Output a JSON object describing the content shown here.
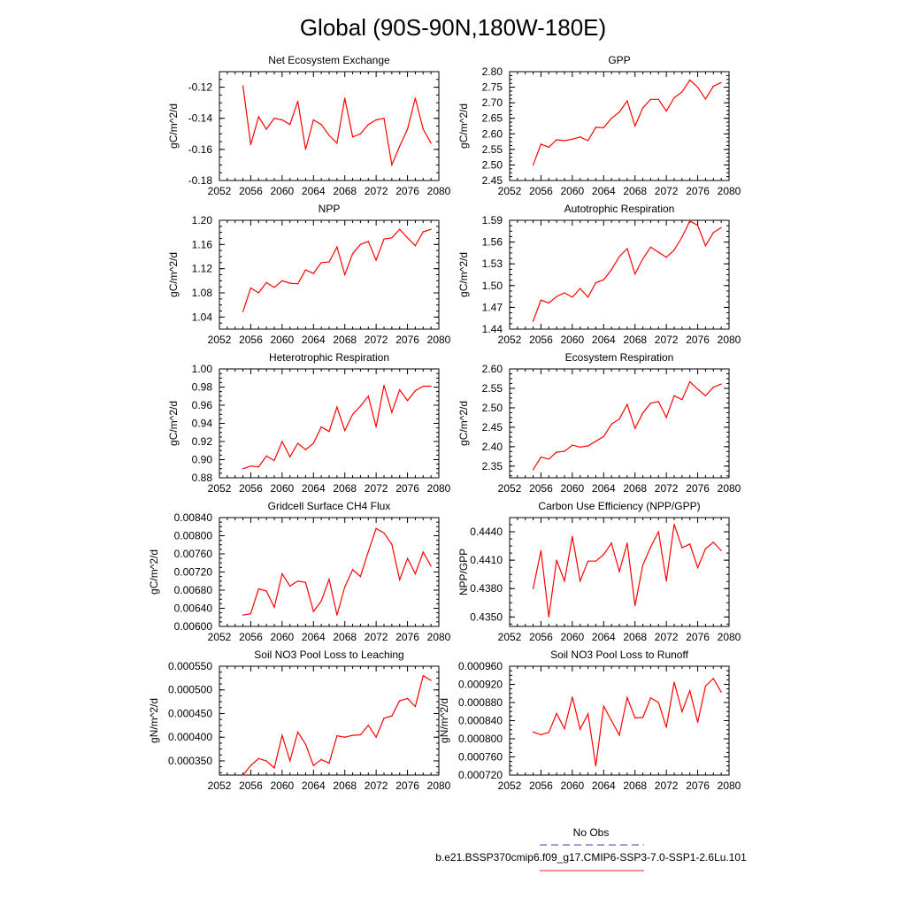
{
  "page": {
    "title": "Global (90S-90N,180W-180E)"
  },
  "legend": {
    "items": [
      {
        "label": "No Obs",
        "color": "#4040c0",
        "dash": "dashed"
      },
      {
        "label": "b.e21.BSSP370cmip6.f09_g17.CMIP6-SSP3-7.0-SSP1-2.6Lu.101",
        "color": "#e02020",
        "dash": "solid"
      }
    ]
  },
  "colors": {
    "series_line": "#ff0000",
    "axis": "#000000",
    "obs_line": "#4040c0"
  },
  "chart_data": [
    {
      "type": "line",
      "title": "Net Ecosystem Exchange",
      "ylabel": "gC/m^2/d",
      "xlim": [
        2052,
        2080
      ],
      "ylim": [
        -0.18,
        -0.11
      ],
      "xticks": [
        2052,
        2056,
        2060,
        2064,
        2068,
        2072,
        2076,
        2080
      ],
      "xtick_labels": [
        "2052",
        "2056",
        "2060",
        "2064",
        "2068",
        "2072",
        "2076",
        "2080"
      ],
      "yticks": [
        -0.18,
        -0.16,
        -0.14,
        -0.12
      ],
      "ytick_labels": [
        "-0.18",
        "-0.16",
        "-0.14",
        "-0.12"
      ],
      "x": [
        2055,
        2056,
        2057,
        2058,
        2059,
        2060,
        2061,
        2062,
        2063,
        2064,
        2065,
        2066,
        2067,
        2068,
        2069,
        2070,
        2071,
        2072,
        2073,
        2074,
        2075,
        2076,
        2077,
        2078,
        2079
      ],
      "values": [
        -0.119,
        -0.157,
        -0.139,
        -0.147,
        -0.14,
        -0.141,
        -0.144,
        -0.129,
        -0.16,
        -0.141,
        -0.144,
        -0.151,
        -0.156,
        -0.127,
        -0.152,
        -0.15,
        -0.144,
        -0.141,
        -0.14,
        -0.17,
        -0.158,
        -0.147,
        -0.127,
        -0.147,
        -0.156
      ]
    },
    {
      "type": "line",
      "title": "GPP",
      "ylabel": "gC/m^2/d",
      "xlim": [
        2052,
        2080
      ],
      "ylim": [
        2.45,
        2.8
      ],
      "xticks": [
        2052,
        2056,
        2060,
        2064,
        2068,
        2072,
        2076,
        2080
      ],
      "xtick_labels": [
        "2052",
        "2056",
        "2060",
        "2064",
        "2068",
        "2072",
        "2076",
        "2080"
      ],
      "yticks": [
        2.45,
        2.5,
        2.55,
        2.6,
        2.65,
        2.7,
        2.75,
        2.8
      ],
      "ytick_labels": [
        "2.45",
        "2.50",
        "2.55",
        "2.60",
        "2.65",
        "2.70",
        "2.75",
        "2.80"
      ],
      "x": [
        2055,
        2056,
        2057,
        2058,
        2059,
        2060,
        2061,
        2062,
        2063,
        2064,
        2065,
        2066,
        2067,
        2068,
        2069,
        2070,
        2071,
        2072,
        2073,
        2074,
        2075,
        2076,
        2077,
        2078,
        2079
      ],
      "values": [
        2.5,
        2.567,
        2.557,
        2.581,
        2.578,
        2.583,
        2.59,
        2.578,
        2.621,
        2.62,
        2.65,
        2.67,
        2.706,
        2.625,
        2.684,
        2.711,
        2.711,
        2.673,
        2.716,
        2.735,
        2.773,
        2.75,
        2.712,
        2.753,
        2.765
      ]
    },
    {
      "type": "line",
      "title": "NPP",
      "ylabel": "gC/m^2/d",
      "xlim": [
        2052,
        2080
      ],
      "ylim": [
        1.02,
        1.2
      ],
      "xticks": [
        2052,
        2056,
        2060,
        2064,
        2068,
        2072,
        2076,
        2080
      ],
      "xtick_labels": [
        "2052",
        "2056",
        "2060",
        "2064",
        "2068",
        "2072",
        "2076",
        "2080"
      ],
      "yticks": [
        1.04,
        1.08,
        1.12,
        1.16,
        1.2
      ],
      "ytick_labels": [
        "1.04",
        "1.08",
        "1.12",
        "1.16",
        "1.20"
      ],
      "x": [
        2055,
        2056,
        2057,
        2058,
        2059,
        2060,
        2061,
        2062,
        2063,
        2064,
        2065,
        2066,
        2067,
        2068,
        2069,
        2070,
        2071,
        2072,
        2073,
        2074,
        2075,
        2076,
        2077,
        2078,
        2079
      ],
      "values": [
        1.049,
        1.088,
        1.08,
        1.097,
        1.089,
        1.1,
        1.096,
        1.095,
        1.118,
        1.112,
        1.13,
        1.131,
        1.156,
        1.11,
        1.145,
        1.16,
        1.165,
        1.134,
        1.169,
        1.171,
        1.185,
        1.171,
        1.158,
        1.181,
        1.185
      ]
    },
    {
      "type": "line",
      "title": "Autotrophic Respiration",
      "ylabel": "gC/m^2/d",
      "xlim": [
        2052,
        2080
      ],
      "ylim": [
        1.44,
        1.59
      ],
      "xticks": [
        2052,
        2056,
        2060,
        2064,
        2068,
        2072,
        2076,
        2080
      ],
      "xtick_labels": [
        "2052",
        "2056",
        "2060",
        "2064",
        "2068",
        "2072",
        "2076",
        "2080"
      ],
      "yticks": [
        1.44,
        1.47,
        1.5,
        1.53,
        1.56,
        1.59
      ],
      "ytick_labels": [
        "1.44",
        "1.47",
        "1.50",
        "1.53",
        "1.56",
        "1.59"
      ],
      "x": [
        2055,
        2056,
        2057,
        2058,
        2059,
        2060,
        2061,
        2062,
        2063,
        2064,
        2065,
        2066,
        2067,
        2068,
        2069,
        2070,
        2071,
        2072,
        2073,
        2074,
        2075,
        2076,
        2077,
        2078,
        2079
      ],
      "values": [
        1.451,
        1.48,
        1.476,
        1.485,
        1.49,
        1.484,
        1.496,
        1.484,
        1.504,
        1.508,
        1.522,
        1.54,
        1.551,
        1.516,
        1.537,
        1.553,
        1.546,
        1.539,
        1.549,
        1.567,
        1.589,
        1.583,
        1.555,
        1.573,
        1.58
      ]
    },
    {
      "type": "line",
      "title": "Heterotrophic Respiration",
      "ylabel": "gC/m^2/d",
      "xlim": [
        2052,
        2080
      ],
      "ylim": [
        0.88,
        1.0
      ],
      "xticks": [
        2052,
        2056,
        2060,
        2064,
        2068,
        2072,
        2076,
        2080
      ],
      "xtick_labels": [
        "2052",
        "2056",
        "2060",
        "2064",
        "2068",
        "2072",
        "2076",
        "2080"
      ],
      "yticks": [
        0.88,
        0.9,
        0.92,
        0.94,
        0.96,
        0.98,
        1.0
      ],
      "ytick_labels": [
        "0.88",
        "0.90",
        "0.92",
        "0.94",
        "0.96",
        "0.98",
        "1.00"
      ],
      "x": [
        2055,
        2056,
        2057,
        2058,
        2059,
        2060,
        2061,
        2062,
        2063,
        2064,
        2065,
        2066,
        2067,
        2068,
        2069,
        2070,
        2071,
        2072,
        2073,
        2074,
        2075,
        2076,
        2077,
        2078,
        2079
      ],
      "values": [
        0.89,
        0.893,
        0.892,
        0.904,
        0.899,
        0.92,
        0.903,
        0.918,
        0.911,
        0.918,
        0.936,
        0.931,
        0.958,
        0.932,
        0.95,
        0.959,
        0.97,
        0.936,
        0.982,
        0.952,
        0.977,
        0.965,
        0.976,
        0.981,
        0.981
      ]
    },
    {
      "type": "line",
      "title": "Ecosystem Respiration",
      "ylabel": "gC/m^2/d",
      "xlim": [
        2052,
        2080
      ],
      "ylim": [
        2.32,
        2.6
      ],
      "xticks": [
        2052,
        2056,
        2060,
        2064,
        2068,
        2072,
        2076,
        2080
      ],
      "xtick_labels": [
        "2052",
        "2056",
        "2060",
        "2064",
        "2068",
        "2072",
        "2076",
        "2080"
      ],
      "yticks": [
        2.35,
        2.4,
        2.45,
        2.5,
        2.55,
        2.6
      ],
      "ytick_labels": [
        "2.35",
        "2.40",
        "2.45",
        "2.50",
        "2.55",
        "2.60"
      ],
      "x": [
        2055,
        2056,
        2057,
        2058,
        2059,
        2060,
        2061,
        2062,
        2063,
        2064,
        2065,
        2066,
        2067,
        2068,
        2069,
        2070,
        2071,
        2072,
        2073,
        2074,
        2075,
        2076,
        2077,
        2078,
        2079
      ],
      "values": [
        2.341,
        2.373,
        2.368,
        2.386,
        2.388,
        2.404,
        2.399,
        2.402,
        2.414,
        2.426,
        2.458,
        2.471,
        2.509,
        2.447,
        2.487,
        2.512,
        2.516,
        2.475,
        2.531,
        2.521,
        2.567,
        2.548,
        2.531,
        2.553,
        2.561
      ]
    },
    {
      "type": "line",
      "title": "Gridcell Surface CH4 Flux",
      "ylabel": "gC/m^2/d",
      "xlim": [
        2052,
        2080
      ],
      "ylim": [
        0.006,
        0.0084
      ],
      "xticks": [
        2052,
        2056,
        2060,
        2064,
        2068,
        2072,
        2076,
        2080
      ],
      "xtick_labels": [
        "2052",
        "2056",
        "2060",
        "2064",
        "2068",
        "2072",
        "2076",
        "2080"
      ],
      "yticks": [
        0.006,
        0.0064,
        0.0068,
        0.0072,
        0.0076,
        0.008,
        0.0084
      ],
      "ytick_labels": [
        "0.00600",
        "0.00640",
        "0.00680",
        "0.00720",
        "0.00760",
        "0.00800",
        "0.00840"
      ],
      "x": [
        2055,
        2056,
        2057,
        2058,
        2059,
        2060,
        2061,
        2062,
        2063,
        2064,
        2065,
        2066,
        2067,
        2068,
        2069,
        2070,
        2071,
        2072,
        2073,
        2074,
        2075,
        2076,
        2077,
        2078,
        2079
      ],
      "values": [
        0.00625,
        0.00628,
        0.00683,
        0.00678,
        0.00642,
        0.00716,
        0.00689,
        0.007,
        0.00697,
        0.00633,
        0.00656,
        0.00704,
        0.00625,
        0.00687,
        0.00725,
        0.0071,
        0.00765,
        0.00816,
        0.00806,
        0.00781,
        0.00703,
        0.0075,
        0.00716,
        0.00764,
        0.00733
      ]
    },
    {
      "type": "line",
      "title": "Carbon Use Efficiency (NPP/GPP)",
      "ylabel": "NPP/GPP",
      "xlim": [
        2052,
        2080
      ],
      "ylim": [
        0.434,
        0.4455
      ],
      "xticks": [
        2052,
        2056,
        2060,
        2064,
        2068,
        2072,
        2076,
        2080
      ],
      "xtick_labels": [
        "2052",
        "2056",
        "2060",
        "2064",
        "2068",
        "2072",
        "2076",
        "2080"
      ],
      "yticks": [
        0.435,
        0.438,
        0.441,
        0.444
      ],
      "ytick_labels": [
        "0.4350",
        "0.4380",
        "0.4410",
        "0.4440"
      ],
      "x": [
        2055,
        2056,
        2057,
        2058,
        2059,
        2060,
        2061,
        2062,
        2063,
        2064,
        2065,
        2066,
        2067,
        2068,
        2069,
        2070,
        2071,
        2072,
        2073,
        2074,
        2075,
        2076,
        2077,
        2078,
        2079
      ],
      "values": [
        0.438,
        0.442,
        0.435,
        0.441,
        0.4388,
        0.4435,
        0.4388,
        0.4409,
        0.4409,
        0.4416,
        0.4428,
        0.4398,
        0.4428,
        0.4362,
        0.4405,
        0.4424,
        0.444,
        0.4388,
        0.4448,
        0.4423,
        0.4427,
        0.4402,
        0.4422,
        0.4429,
        0.442
      ]
    },
    {
      "type": "line",
      "title": "Soil NO3 Pool Loss to Leaching",
      "ylabel": "gN/m^2/d",
      "xlim": [
        2052,
        2080
      ],
      "ylim": [
        0.00032,
        0.00055
      ],
      "xticks": [
        2052,
        2056,
        2060,
        2064,
        2068,
        2072,
        2076,
        2080
      ],
      "xtick_labels": [
        "2052",
        "2056",
        "2060",
        "2064",
        "2068",
        "2072",
        "2076",
        "2080"
      ],
      "yticks": [
        0.00035,
        0.0004,
        0.00045,
        0.0005,
        0.00055
      ],
      "ytick_labels": [
        "0.000350",
        "0.000400",
        "0.000450",
        "0.000500",
        "0.000550"
      ],
      "x": [
        2055,
        2056,
        2057,
        2058,
        2059,
        2060,
        2061,
        2062,
        2063,
        2064,
        2065,
        2066,
        2067,
        2068,
        2069,
        2070,
        2071,
        2072,
        2073,
        2074,
        2075,
        2076,
        2077,
        2078,
        2079
      ],
      "values": [
        0.00032,
        0.00034,
        0.000355,
        0.00035,
        0.000335,
        0.000404,
        0.00035,
        0.000411,
        0.000385,
        0.00034,
        0.000353,
        0.000345,
        0.000403,
        0.0004,
        0.000404,
        0.000405,
        0.000425,
        0.0004,
        0.00044,
        0.000445,
        0.000477,
        0.000482,
        0.000465,
        0.00053,
        0.00052
      ]
    },
    {
      "type": "line",
      "title": "Soil NO3 Pool Loss to Runoff",
      "ylabel": "gN/m^2/d",
      "xlim": [
        2052,
        2080
      ],
      "ylim": [
        0.00072,
        0.00096
      ],
      "xticks": [
        2052,
        2056,
        2060,
        2064,
        2068,
        2072,
        2076,
        2080
      ],
      "xtick_labels": [
        "2052",
        "2056",
        "2060",
        "2064",
        "2068",
        "2072",
        "2076",
        "2080"
      ],
      "yticks": [
        0.00072,
        0.00076,
        0.0008,
        0.00084,
        0.00088,
        0.00092,
        0.00096
      ],
      "ytick_labels": [
        "0.000720",
        "0.000760",
        "0.000800",
        "0.000840",
        "0.000880",
        "0.000920",
        "0.000960"
      ],
      "x": [
        2055,
        2056,
        2057,
        2058,
        2059,
        2060,
        2061,
        2062,
        2063,
        2064,
        2065,
        2066,
        2067,
        2068,
        2069,
        2070,
        2071,
        2072,
        2073,
        2074,
        2075,
        2076,
        2077,
        2078,
        2079
      ],
      "values": [
        0.000815,
        0.000809,
        0.000814,
        0.000856,
        0.000822,
        0.000892,
        0.000821,
        0.000855,
        0.00074,
        0.000872,
        0.00084,
        0.000808,
        0.000891,
        0.000846,
        0.000847,
        0.00089,
        0.00088,
        0.000825,
        0.000925,
        0.00086,
        0.000906,
        0.000836,
        0.000916,
        0.000933,
        0.000903
      ]
    }
  ]
}
